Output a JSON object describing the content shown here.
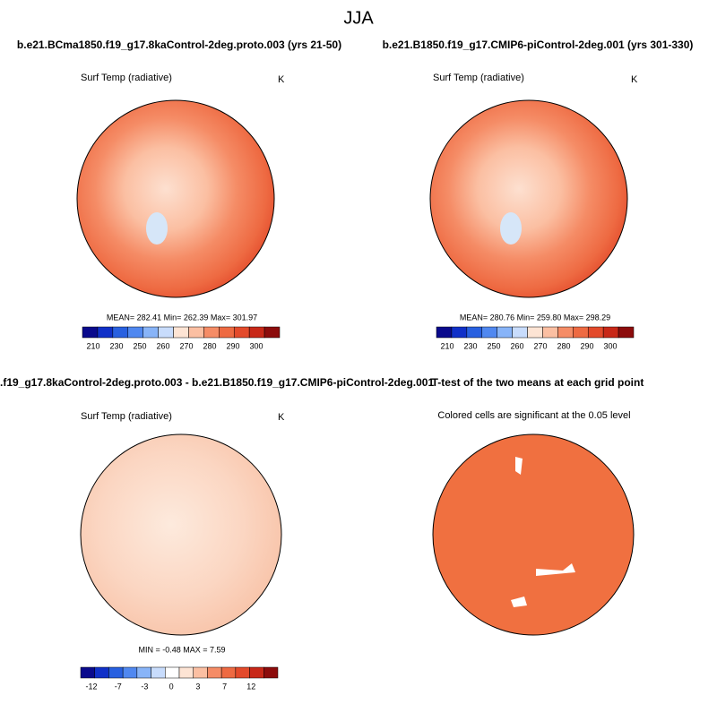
{
  "title": "JJA",
  "panels": [
    {
      "title": "b.e21.BCma1850.f19_g17.8kaControl-2deg.proto.003 (yrs 21-50)",
      "left_label": "Surf Temp (radiative)",
      "right_label": "K",
      "stats": "MEAN= 282.41  Min= 262.39  Max= 301.97",
      "colorbar_labels": [
        "210",
        "230",
        "250",
        "260",
        "270",
        "280",
        "290",
        "300"
      ]
    },
    {
      "title": "b.e21.B1850.f19_g17.CMIP6-piControl-2deg.001 (yrs 301-330)",
      "left_label": "Surf Temp (radiative)",
      "right_label": "K",
      "stats": "MEAN= 280.76  Min= 259.80  Max= 298.29",
      "colorbar_labels": [
        "210",
        "230",
        "250",
        "260",
        "270",
        "280",
        "290",
        "300"
      ]
    },
    {
      "title": ".f19_g17.8kaControl-2deg.proto.003 - b.e21.B1850.f19_g17.CMIP6-piControl-2deg.001",
      "left_label": "Surf Temp (radiative)",
      "right_label": "K",
      "stats": "MIN =  -0.48 MAX =   7.59",
      "colorbar_labels": [
        "-12",
        "-7",
        "-3",
        "0",
        "3",
        "7",
        "12"
      ]
    },
    {
      "title": "T-test of the two means at each grid point",
      "subtitle": "Colored cells are significant at the 0.05 level"
    }
  ]
}
